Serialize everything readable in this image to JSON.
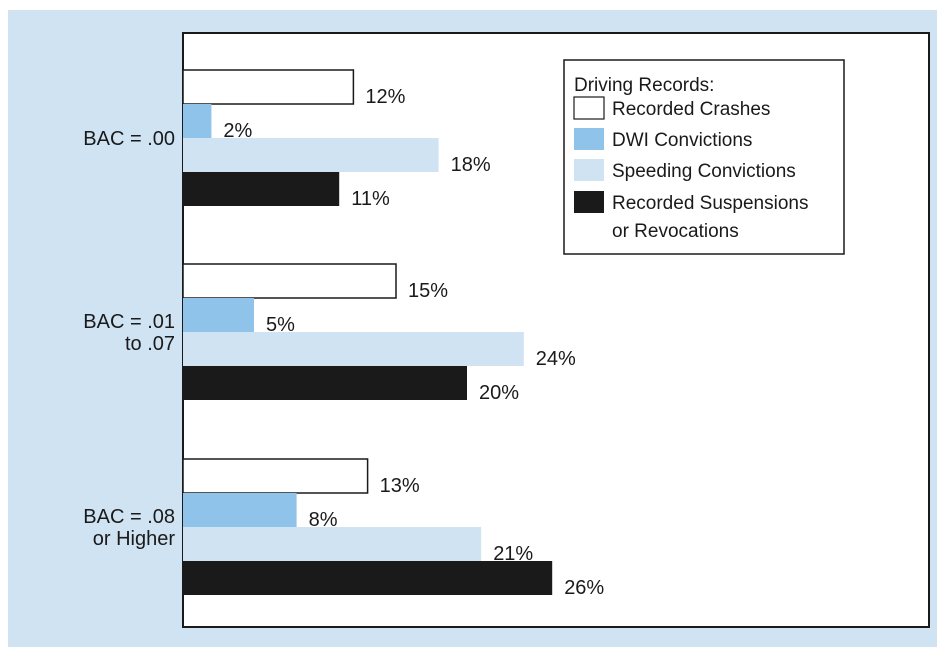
{
  "chart_data": {
    "type": "bar",
    "orientation": "horizontal",
    "categories": [
      [
        "BAC = .00"
      ],
      [
        "BAC = .01",
        "to .07"
      ],
      [
        "BAC = .08",
        "or Higher"
      ]
    ],
    "series": [
      {
        "name": "Recorded Crashes",
        "values": [
          12,
          15,
          13
        ],
        "color": "#ffffff",
        "stroke": "#1a1a1a"
      },
      {
        "name": "DWI Convictions",
        "values": [
          2,
          5,
          8
        ],
        "color": "#8fc3ea",
        "stroke": "none"
      },
      {
        "name": "Speeding Convictions",
        "values": [
          18,
          24,
          21
        ],
        "color": "#d0e3f3",
        "stroke": "none"
      },
      {
        "name": "Recorded Suspensions or Revocations",
        "values": [
          11,
          20,
          26
        ],
        "color": "#1a1a1a",
        "stroke": "none"
      }
    ],
    "value_suffix": "%",
    "legend": {
      "title": "Driving Records:",
      "placement": "top-right",
      "entries": [
        [
          "Recorded Crashes"
        ],
        [
          "DWI Convictions"
        ],
        [
          "Speeding Convictions"
        ],
        [
          "Recorded Suspensions",
          "or Revocations"
        ]
      ]
    },
    "xlim": [
      0,
      30
    ],
    "grid": false,
    "background_color": "#d0e3f3",
    "plot_background": "#ffffff"
  }
}
